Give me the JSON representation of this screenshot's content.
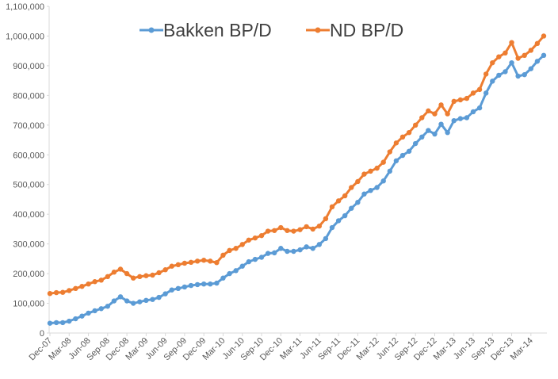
{
  "chart_data": {
    "type": "line",
    "categories": [
      "Dec-07",
      null,
      null,
      "Mar-08",
      null,
      null,
      "Jun-08",
      null,
      null,
      "Sep-08",
      null,
      null,
      "Dec-08",
      null,
      null,
      "Mar-09",
      null,
      null,
      "Jun-09",
      null,
      null,
      "Sep-09",
      null,
      null,
      "Dec-09",
      null,
      null,
      "Mar-10",
      null,
      null,
      "Jun-10",
      null,
      null,
      "Sep-10",
      null,
      null,
      "Dec-10",
      null,
      null,
      "Mar-11",
      null,
      null,
      "Jun-11",
      null,
      null,
      "Sep-11",
      null,
      null,
      "Dec-11",
      null,
      null,
      "Mar-12",
      null,
      null,
      "Jun-12",
      null,
      null,
      "Sep-12",
      null,
      null,
      "Dec-12",
      null,
      null,
      "Mar-13",
      null,
      null,
      "Jun-13",
      null,
      null,
      "Sep-13",
      null,
      null,
      "Dec-13",
      null,
      null,
      "Mar-14",
      null,
      null
    ],
    "series": [
      {
        "name": "Bakken BP/D",
        "color": "#5b9bd5",
        "values": [
          33000,
          35000,
          35000,
          40000,
          48000,
          57000,
          67000,
          75000,
          82000,
          90000,
          108000,
          122000,
          108000,
          100000,
          105000,
          110000,
          113000,
          120000,
          132000,
          145000,
          150000,
          155000,
          160000,
          163000,
          165000,
          165000,
          168000,
          185000,
          200000,
          210000,
          225000,
          240000,
          248000,
          255000,
          268000,
          270000,
          285000,
          275000,
          275000,
          280000,
          290000,
          285000,
          298000,
          318000,
          355000,
          378000,
          395000,
          420000,
          440000,
          468000,
          480000,
          490000,
          512000,
          545000,
          580000,
          598000,
          612000,
          638000,
          660000,
          682000,
          670000,
          703000,
          675000,
          715000,
          722000,
          725000,
          745000,
          758000,
          808000,
          848000,
          868000,
          880000,
          910000,
          865000,
          870000,
          890000,
          915000,
          935000
        ]
      },
      {
        "name": "ND BP/D",
        "color": "#ed7d31",
        "values": [
          133000,
          136000,
          137000,
          143000,
          150000,
          157000,
          165000,
          173000,
          178000,
          190000,
          205000,
          215000,
          200000,
          185000,
          190000,
          193000,
          195000,
          203000,
          213000,
          225000,
          230000,
          235000,
          238000,
          242000,
          245000,
          242000,
          237000,
          262000,
          278000,
          285000,
          298000,
          313000,
          320000,
          328000,
          343000,
          345000,
          355000,
          345000,
          343000,
          348000,
          358000,
          350000,
          360000,
          385000,
          425000,
          445000,
          462000,
          490000,
          510000,
          535000,
          545000,
          555000,
          575000,
          610000,
          640000,
          660000,
          675000,
          700000,
          725000,
          748000,
          738000,
          768000,
          738000,
          780000,
          785000,
          790000,
          808000,
          820000,
          872000,
          910000,
          930000,
          943000,
          978000,
          925000,
          935000,
          952000,
          975000,
          1000000
        ]
      }
    ],
    "ylim": [
      0,
      1100000
    ],
    "yticks": [
      0,
      {
        "value": 100000,
        "label": "100,000"
      },
      {
        "value": 200000,
        "label": "200,000"
      },
      {
        "value": 300000,
        "label": "300,000"
      },
      {
        "value": 400000,
        "label": "400,000"
      },
      {
        "value": 500000,
        "label": "500,000"
      },
      {
        "value": 600000,
        "label": "600,000"
      },
      {
        "value": 700000,
        "label": "700,000"
      },
      {
        "value": 800000,
        "label": "800,000"
      },
      {
        "value": 900000,
        "label": "900,000"
      },
      {
        "value": 1000000,
        "label": "1,000,000"
      },
      {
        "value": 1100000,
        "label": "1,100,000"
      }
    ],
    "grid": false,
    "legend": "top"
  }
}
